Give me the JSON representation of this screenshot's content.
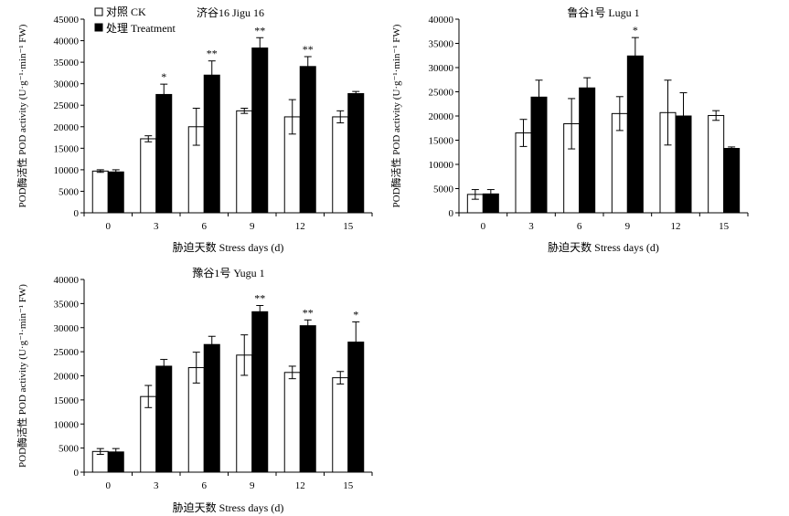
{
  "legend": {
    "ck": "对照 CK",
    "treatment": "处理 Treatment"
  },
  "chart_data": [
    {
      "type": "bar",
      "title": "济谷16 Jigu 16",
      "xlabel": "胁迫天数 Stress days (d)",
      "ylabel": "POD酶活性 POD activity (U·g⁻¹·min⁻¹ FW)",
      "ylim": [
        0,
        45000
      ],
      "yticks": [
        0,
        5000,
        10000,
        15000,
        20000,
        25000,
        30000,
        35000,
        40000,
        45000
      ],
      "categories": [
        "0",
        "3",
        "6",
        "9",
        "12",
        "15"
      ],
      "series": [
        {
          "name": "对照 CK",
          "color": "#ffffff",
          "values": [
            9700,
            17200,
            20000,
            23700,
            22300,
            22300
          ],
          "errors": [
            300,
            700,
            4300,
            600,
            4000,
            1400
          ]
        },
        {
          "name": "处理 Treatment",
          "color": "#000000",
          "values": [
            9500,
            27500,
            32000,
            38300,
            34000,
            27700
          ],
          "errors": [
            500,
            2400,
            3300,
            2400,
            2300,
            500
          ]
        }
      ],
      "significance": [
        "",
        "*",
        "**",
        "**",
        "**",
        ""
      ]
    },
    {
      "type": "bar",
      "title": "鲁谷1号 Lugu 1",
      "xlabel": "胁迫天数 Stress days (d)",
      "ylabel": "POD酶活性 POD activity (U·g⁻¹·min⁻¹ FW)",
      "ylim": [
        0,
        40000
      ],
      "yticks": [
        0,
        5000,
        10000,
        15000,
        20000,
        25000,
        30000,
        35000,
        40000
      ],
      "categories": [
        "0",
        "3",
        "6",
        "9",
        "12",
        "15"
      ],
      "series": [
        {
          "name": "对照 CK",
          "color": "#ffffff",
          "values": [
            3800,
            16500,
            18400,
            20500,
            20700,
            20100
          ],
          "errors": [
            1000,
            2800,
            5200,
            3500,
            6700,
            1000
          ]
        },
        {
          "name": "处理 Treatment",
          "color": "#000000",
          "values": [
            3900,
            23900,
            25800,
            32400,
            20000,
            13300
          ],
          "errors": [
            900,
            3500,
            2100,
            3800,
            4800,
            300
          ]
        }
      ],
      "significance": [
        "",
        "",
        "",
        "*",
        "",
        ""
      ]
    },
    {
      "type": "bar",
      "title": "豫谷1号 Yugu 1",
      "xlabel": "胁迫天数 Stress days (d)",
      "ylabel": "POD酶活性 POD activity (U·g⁻¹·min⁻¹ FW)",
      "ylim": [
        0,
        40000
      ],
      "yticks": [
        0,
        5000,
        10000,
        15000,
        20000,
        25000,
        30000,
        35000,
        40000
      ],
      "categories": [
        "0",
        "3",
        "6",
        "9",
        "12",
        "15"
      ],
      "series": [
        {
          "name": "对照 CK",
          "color": "#ffffff",
          "values": [
            4300,
            15700,
            21700,
            24300,
            20700,
            19600
          ],
          "errors": [
            600,
            2300,
            3200,
            4200,
            1300,
            1300
          ]
        },
        {
          "name": "处理 Treatment",
          "color": "#000000",
          "values": [
            4200,
            22000,
            26500,
            33300,
            30400,
            27000
          ],
          "errors": [
            700,
            1400,
            1700,
            1300,
            1200,
            4200
          ]
        }
      ],
      "significance": [
        "",
        "",
        "",
        "**",
        "**",
        "*"
      ]
    }
  ]
}
